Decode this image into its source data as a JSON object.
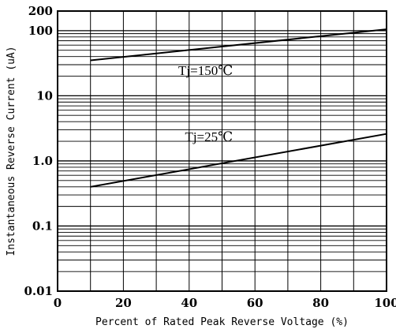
{
  "chart_data": {
    "type": "line",
    "title": "",
    "xlabel": "Percent of Rated Peak Reverse Voltage (%)",
    "ylabel": "Instantaneous Reverse Current (uA)",
    "xlim": [
      0,
      100
    ],
    "ylim": [
      0.01,
      200
    ],
    "yscale": "log",
    "grid": true,
    "x_ticks": [
      0,
      20,
      40,
      60,
      80,
      100
    ],
    "x_tick_labels": [
      "0",
      "20",
      "40",
      "60",
      "80",
      "100"
    ],
    "y_ticks": [
      0.01,
      0.1,
      1.0,
      10,
      100,
      200
    ],
    "y_tick_labels": [
      "0.01",
      "0.1",
      "1.0",
      "10",
      "100",
      "200"
    ],
    "series": [
      {
        "name": "Tj=150°C",
        "x": [
          10,
          100
        ],
        "y": [
          35,
          105
        ]
      },
      {
        "name": "Tj=25°C",
        "x": [
          10,
          100
        ],
        "y": [
          0.4,
          2.6
        ]
      }
    ],
    "annotations": [
      {
        "text": "Tj=150℃",
        "x": 45,
        "y": 21
      },
      {
        "text": "Tj=25℃",
        "x": 46,
        "y": 2.0
      }
    ]
  }
}
